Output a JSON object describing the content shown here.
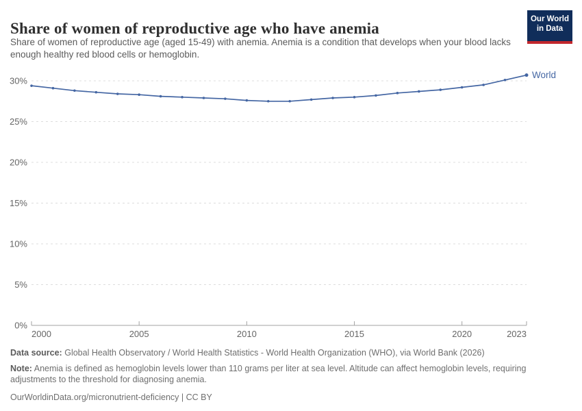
{
  "header": {
    "title": "Share of women of reproductive age who have anemia",
    "subtitle": "Share of women of reproductive age (aged 15-49) with anemia. Anemia is a condition that develops when your blood lacks enough healthy red blood cells or hemoglobin.",
    "logo": {
      "line1": "Our World",
      "line2": "in Data"
    }
  },
  "chart_data": {
    "type": "line",
    "title": "Share of women of reproductive age who have anemia",
    "xlabel": "",
    "ylabel": "",
    "xlim": [
      2000,
      2023
    ],
    "ylim": [
      0,
      30
    ],
    "grid": true,
    "legend_position": "end-of-line",
    "x_ticks": [
      2000,
      2005,
      2010,
      2015,
      2020,
      2023
    ],
    "y_ticks": [
      0,
      5,
      10,
      15,
      20,
      25,
      30
    ],
    "y_tick_suffix": "%",
    "x": [
      2000,
      2001,
      2002,
      2003,
      2004,
      2005,
      2006,
      2007,
      2008,
      2009,
      2010,
      2011,
      2012,
      2013,
      2014,
      2015,
      2016,
      2017,
      2018,
      2019,
      2020,
      2021,
      2022,
      2023
    ],
    "series": [
      {
        "name": "World",
        "color": "#4466A3",
        "values": [
          29.4,
          29.1,
          28.8,
          28.6,
          28.4,
          28.3,
          28.1,
          28.0,
          27.9,
          27.8,
          27.6,
          27.5,
          27.5,
          27.7,
          27.9,
          28.0,
          28.2,
          28.5,
          28.7,
          28.9,
          29.2,
          29.5,
          30.1,
          30.7
        ]
      }
    ]
  },
  "footer": {
    "data_source_label": "Data source:",
    "data_source": "Global Health Observatory / World Health Statistics - World Health Organization (WHO), via World Bank (2026)",
    "note_label": "Note:",
    "note": "Anemia is defined as hemoglobin levels lower than 110 grams per liter at sea level. Altitude can affect hemoglobin levels, requiring adjustments to the threshold for diagnosing anemia.",
    "citation": "OurWorldinData.org/micronutrient-deficiency | CC BY"
  },
  "colors": {
    "line": "#4466A3",
    "grid": "#dcdcdc",
    "axis": "#a3a3a3",
    "tick_label": "#666666",
    "logo_bg": "#102D5A",
    "logo_stripe": "#C2272D",
    "title": "#2f2f2f",
    "subtitle": "#5b5b5b",
    "footer": "#6e6e6e"
  }
}
